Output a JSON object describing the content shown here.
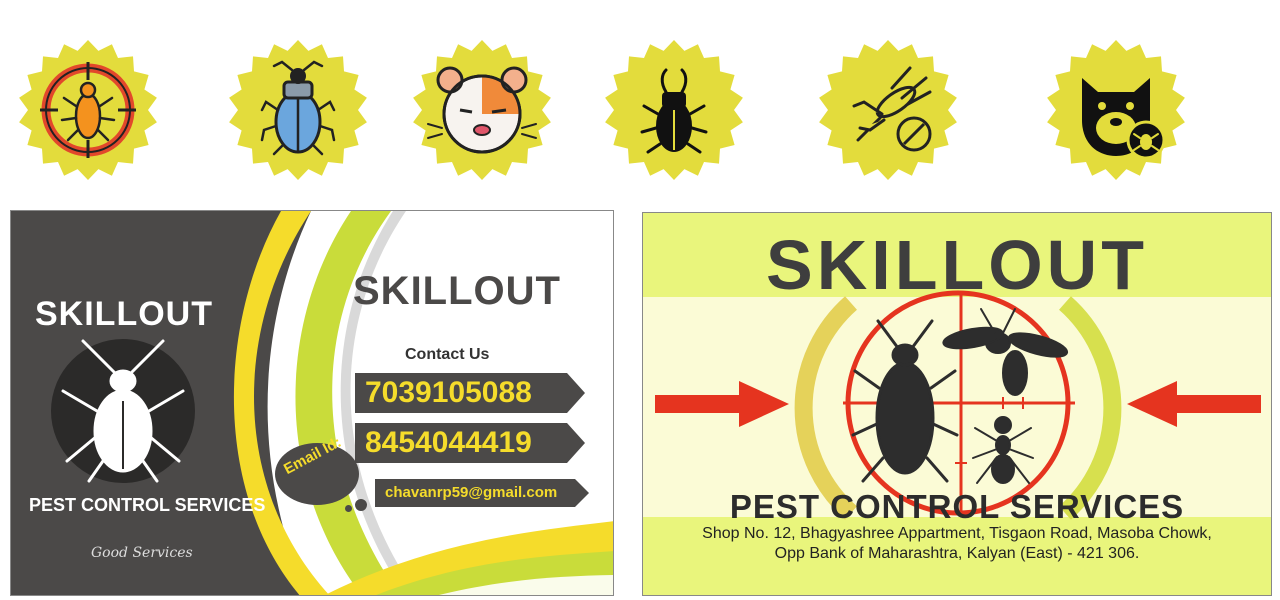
{
  "icons": [
    {
      "name": "bug-target-icon"
    },
    {
      "name": "beetle-icon"
    },
    {
      "name": "hamster-icon"
    },
    {
      "name": "stag-beetle-icon"
    },
    {
      "name": "no-mosquito-icon"
    },
    {
      "name": "dog-tick-icon"
    }
  ],
  "colors": {
    "badge": "#e3dc3c",
    "card_dark": "#4b4948",
    "card_yellow": "#f5dc2b",
    "card_green": "#c9dc3a",
    "right_bg": "#e9f57c",
    "target_red": "#e5341f"
  },
  "left_card": {
    "brand": "SKILLOUT",
    "service": "PEST CONTROL SERVICES",
    "tagline": "Good Services",
    "brand_right": "SKILLOUT",
    "contact_heading": "Contact Us",
    "phone_1": "7039105088",
    "phone_2": "8454044419",
    "email_label": "Email Id:",
    "email": "chavanrp59@gmail.com"
  },
  "right_card": {
    "brand": "SKILLOUT",
    "service": "PEST CONTROL SERVICES",
    "address_line_1": "Shop No. 12, Bhagyashree Appartment, Tisgaon Road, Masoba Chowk,",
    "address_line_2": "Opp Bank of Maharashtra, Kalyan (East) - 421 306."
  }
}
